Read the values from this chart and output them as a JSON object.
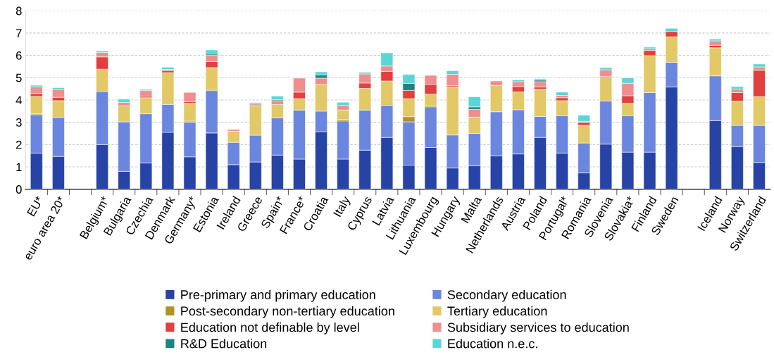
{
  "chart_data": {
    "type": "bar",
    "stacked": true,
    "legend": "bottom",
    "grid": "y",
    "categories": [
      "EU*",
      "euro area 20*",
      null,
      "Belgium*",
      "Bulgaria",
      "Czechia",
      "Denmark",
      "Germany*",
      "Estonia",
      "Ireland",
      "Greece",
      "Spain*",
      "France*",
      "Croatia",
      "Italy",
      "Cyprus",
      "Latvia",
      "Lithuania",
      "Luxembourg",
      "Hungary",
      "Malta",
      "Netherlands",
      "Austria",
      "Poland",
      "Portugal*",
      "Romania",
      "Slovenia",
      "Slovakia*",
      "Finland",
      "Sweden",
      null,
      "Iceland",
      "Norway",
      "Switzerland"
    ],
    "ylim": [
      0,
      8
    ],
    "yticks": [
      0,
      1,
      2,
      3,
      4,
      5,
      6,
      7,
      8
    ],
    "series": [
      {
        "name": "Pre-primary and primary education",
        "color": "#2743a6",
        "values": [
          1.62,
          1.47,
          null,
          2.0,
          0.8,
          1.18,
          2.55,
          1.45,
          2.52,
          1.1,
          1.22,
          1.53,
          1.35,
          2.58,
          1.35,
          1.75,
          2.32,
          1.08,
          1.87,
          0.95,
          1.05,
          1.5,
          1.58,
          2.32,
          1.62,
          0.73,
          2.02,
          1.66,
          1.66,
          4.58,
          null,
          3.07,
          1.91,
          1.2
        ]
      },
      {
        "name": "Secondary education",
        "color": "#6b86de",
        "values": [
          1.72,
          1.75,
          null,
          2.38,
          2.22,
          2.2,
          1.25,
          1.55,
          1.9,
          1.0,
          1.2,
          1.67,
          2.2,
          0.92,
          1.71,
          1.8,
          1.44,
          1.94,
          1.82,
          1.48,
          1.45,
          1.97,
          1.98,
          0.94,
          1.68,
          1.34,
          1.93,
          1.64,
          2.67,
          1.11,
          null,
          2.01,
          0.95,
          1.66
        ]
      },
      {
        "name": "Post-secondary non-tertiary education",
        "color": "#b09226",
        "values": [
          0.05,
          null,
          null,
          null,
          null,
          null,
          null,
          0.05,
          0.05,
          null,
          null,
          null,
          null,
          null,
          0.07,
          null,
          null,
          0.23,
          0.07,
          null,
          null,
          null,
          null,
          null,
          null,
          null,
          null,
          null,
          null,
          null,
          null,
          null,
          null,
          null
        ]
      },
      {
        "name": "Tertiary education",
        "color": "#e2c866",
        "values": [
          0.77,
          0.75,
          null,
          1.0,
          0.72,
          0.72,
          1.42,
          0.8,
          0.98,
          0.5,
          1.32,
          0.59,
          0.51,
          1.19,
          0.42,
          0.97,
          1.09,
          0.81,
          0.5,
          2.15,
          0.73,
          1.18,
          0.8,
          1.22,
          0.67,
          0.79,
          1.06,
          0.55,
          1.66,
          1.14,
          null,
          1.26,
          1.08,
          1.29
        ]
      },
      {
        "name": "Education not definable by level",
        "color": "#e04040",
        "values": [
          0.13,
          0.15,
          null,
          0.55,
          null,
          0.07,
          0.1,
          0.07,
          0.27,
          null,
          null,
          null,
          0.29,
          null,
          null,
          0.24,
          0.43,
          0.37,
          0.44,
          0.06,
          null,
          null,
          0.24,
          0.1,
          0.13,
          0.13,
          0.05,
          0.34,
          0.23,
          0.24,
          null,
          0.11,
          0.39,
          1.18
        ]
      },
      {
        "name": "Subsidiary services to education",
        "color": "#ee8e8e",
        "values": [
          0.3,
          0.35,
          null,
          0.2,
          0.15,
          0.25,
          0.05,
          0.42,
          0.3,
          0.08,
          0.08,
          0.18,
          0.63,
          0.29,
          0.21,
          0.41,
          0.24,
          null,
          0.4,
          0.51,
          0.35,
          0.2,
          0.22,
          0.24,
          0.1,
          0.05,
          0.29,
          0.56,
          0.08,
          null,
          null,
          0.2,
          0.16,
          0.15
        ]
      },
      {
        "name": "R&D Education",
        "color": "#208282",
        "values": [
          null,
          null,
          null,
          null,
          null,
          null,
          null,
          null,
          0.07,
          null,
          null,
          0.04,
          null,
          0.14,
          null,
          null,
          null,
          0.31,
          null,
          null,
          0.11,
          null,
          null,
          0.07,
          null,
          null,
          null,
          null,
          null,
          null,
          null,
          null,
          null,
          null
        ]
      },
      {
        "name": "Education n.e.c.",
        "color": "#5ad6d6",
        "values": [
          0.07,
          0.08,
          null,
          0.07,
          0.15,
          0.05,
          0.1,
          null,
          0.15,
          null,
          0.06,
          0.16,
          null,
          0.14,
          0.14,
          0.07,
          0.59,
          0.4,
          null,
          0.16,
          0.45,
          null,
          0.08,
          0.06,
          0.15,
          0.28,
          0.1,
          0.24,
          0.07,
          0.14,
          null,
          0.08,
          0.11,
          0.13
        ]
      }
    ]
  }
}
